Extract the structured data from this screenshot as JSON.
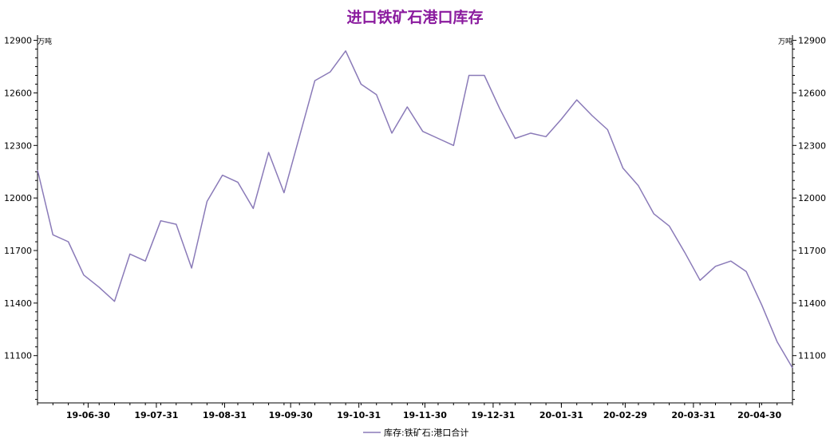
{
  "chart_data": {
    "type": "line",
    "title": "进口铁矿石港口库存",
    "y_unit_left": "万吨",
    "y_unit_right": "万吨",
    "ylim": [
      10830,
      12930
    ],
    "yticks": [
      11100,
      11400,
      11700,
      12000,
      12300,
      12600,
      12900
    ],
    "xlim": [
      "2019-06-07",
      "2020-05-15"
    ],
    "x_tick_labels": [
      {
        "date": "2019-06-30",
        "label": "19-06-30"
      },
      {
        "date": "2019-07-31",
        "label": "19-07-31"
      },
      {
        "date": "2019-08-31",
        "label": "19-08-31"
      },
      {
        "date": "2019-09-30",
        "label": "19-09-30"
      },
      {
        "date": "2019-10-31",
        "label": "19-10-31"
      },
      {
        "date": "2019-11-30",
        "label": "19-11-30"
      },
      {
        "date": "2019-12-31",
        "label": "19-12-31"
      },
      {
        "date": "2020-01-31",
        "label": "20-01-31"
      },
      {
        "date": "2020-02-29",
        "label": "20-02-29"
      },
      {
        "date": "2020-03-31",
        "label": "20-03-31"
      },
      {
        "date": "2020-04-30",
        "label": "20-04-30"
      }
    ],
    "grid": false,
    "legend_position": "bottom-center",
    "series": [
      {
        "name": "库存:铁矿石:港口合计",
        "color": "#8a7ab8",
        "x": [
          "2019-06-07",
          "2019-06-14",
          "2019-06-21",
          "2019-06-28",
          "2019-07-05",
          "2019-07-12",
          "2019-07-19",
          "2019-07-26",
          "2019-08-02",
          "2019-08-09",
          "2019-08-16",
          "2019-08-23",
          "2019-08-30",
          "2019-09-06",
          "2019-09-13",
          "2019-09-20",
          "2019-09-27",
          "2019-10-04",
          "2019-10-11",
          "2019-10-18",
          "2019-10-25",
          "2019-11-01",
          "2019-11-08",
          "2019-11-15",
          "2019-11-22",
          "2019-11-29",
          "2019-12-06",
          "2019-12-13",
          "2019-12-20",
          "2019-12-27",
          "2020-01-03",
          "2020-01-10",
          "2020-01-17",
          "2020-01-24",
          "2020-01-31",
          "2020-02-07",
          "2020-02-14",
          "2020-02-21",
          "2020-02-28",
          "2020-03-06",
          "2020-03-13",
          "2020-03-20",
          "2020-03-27",
          "2020-04-03",
          "2020-04-10",
          "2020-04-17",
          "2020-04-24",
          "2020-05-01",
          "2020-05-08",
          "2020-05-15"
        ],
        "values": [
          12160,
          11790,
          11750,
          11560,
          11490,
          11410,
          11680,
          11640,
          11870,
          11850,
          11600,
          11980,
          12130,
          12090,
          11940,
          12260,
          12030,
          12350,
          12670,
          12720,
          12840,
          12650,
          12590,
          12370,
          12520,
          12380,
          12340,
          12300,
          12700,
          12700,
          12510,
          12340,
          12370,
          12350,
          12450,
          12560,
          12470,
          12390,
          12170,
          12070,
          11910,
          11840,
          11690,
          11530,
          11610,
          11640,
          11580,
          11390,
          11180,
          11030
        ]
      }
    ]
  }
}
